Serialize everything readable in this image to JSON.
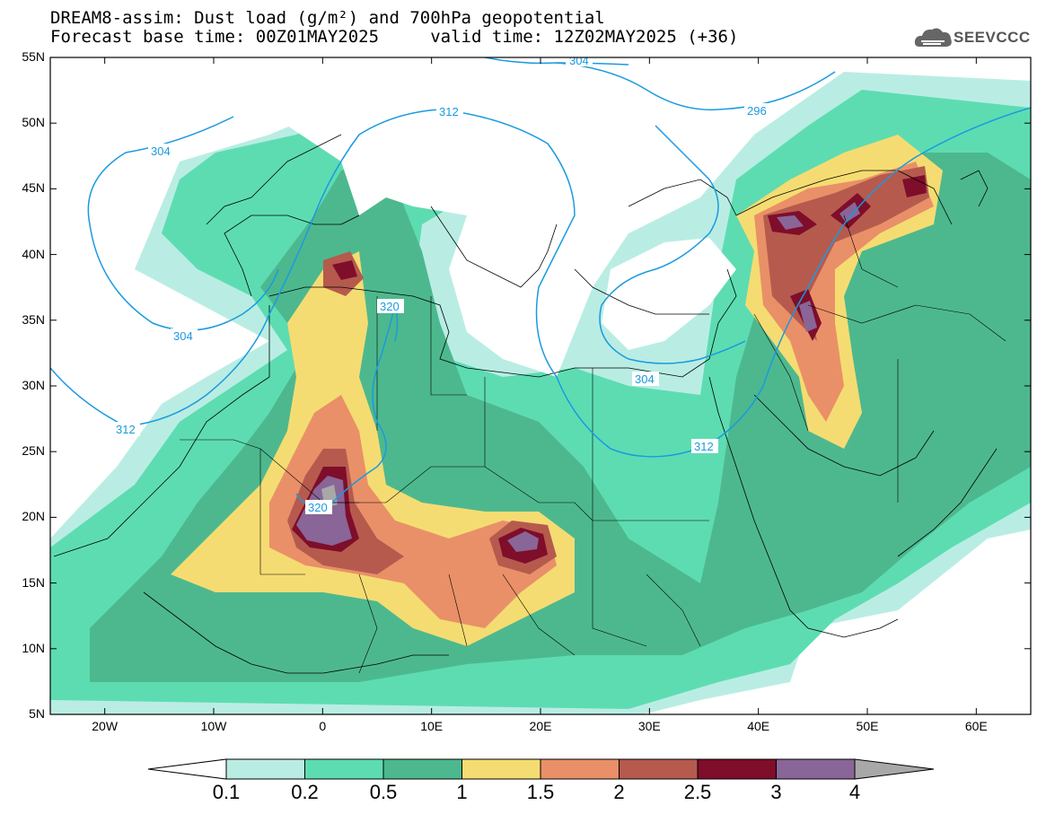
{
  "title": {
    "line1": "DREAM8-assim: Dust load (g/m²) and 700hPa geopotential",
    "line2": "Forecast base time: 00Z01MAY2025     valid time: 12Z02MAY2025 (+36)"
  },
  "logo": {
    "text": "SEEVCCC",
    "icon": "cloud-icon"
  },
  "map": {
    "lon_range": [
      -25,
      65
    ],
    "lat_range": [
      5,
      55
    ],
    "lat_ticks": [
      "55N",
      "50N",
      "45N",
      "40N",
      "35N",
      "30N",
      "25N",
      "20N",
      "15N",
      "10N",
      "5N"
    ],
    "lon_ticks": [
      "20W",
      "10W",
      "0",
      "10E",
      "20E",
      "30E",
      "40E",
      "50E",
      "60E"
    ],
    "contour_color": "#1a9ae0",
    "contour_labels": [
      "304",
      "312",
      "296",
      "304",
      "320",
      "304",
      "312",
      "304",
      "312",
      "320"
    ]
  },
  "colorbar": {
    "labels": [
      "0.1",
      "0.2",
      "0.5",
      "1",
      "1.5",
      "2",
      "2.5",
      "3",
      "4"
    ],
    "colors": [
      "#b9ede3",
      "#5ddcb2",
      "#4db88e",
      "#f5dc72",
      "#e99068",
      "#b65a4e",
      "#7e0e2a",
      "#8a6598",
      "#a8a8a8"
    ]
  }
}
